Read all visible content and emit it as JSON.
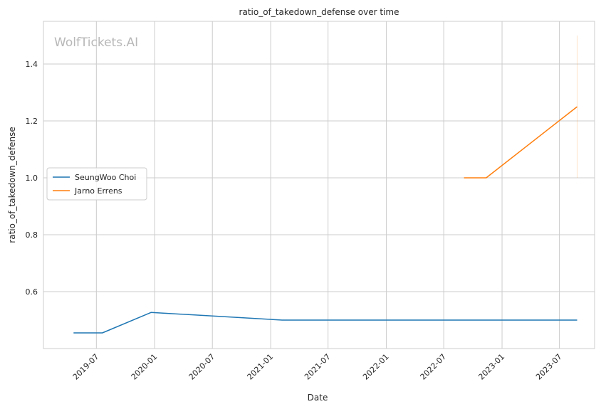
{
  "chart_data": {
    "type": "line",
    "title": "ratio_of_takedown_defense over time",
    "xlabel": "Date",
    "ylabel": "ratio_of_takedown_defense",
    "watermark": "WolfTickets.AI",
    "xlim": [
      "2019-01-15",
      "2023-10-20"
    ],
    "ylim": [
      0.4,
      1.55
    ],
    "grid": true,
    "legend_position": "center-left",
    "x_ticks": [
      {
        "date": "2019-07-01",
        "label": "2019-07"
      },
      {
        "date": "2020-01-01",
        "label": "2020-01"
      },
      {
        "date": "2020-07-01",
        "label": "2020-07"
      },
      {
        "date": "2021-01-01",
        "label": "2021-01"
      },
      {
        "date": "2021-07-01",
        "label": "2021-07"
      },
      {
        "date": "2022-01-01",
        "label": "2022-01"
      },
      {
        "date": "2022-07-01",
        "label": "2022-07"
      },
      {
        "date": "2023-01-01",
        "label": "2023-01"
      },
      {
        "date": "2023-07-01",
        "label": "2023-07"
      }
    ],
    "y_ticks": [
      0.6,
      0.8,
      1.0,
      1.2,
      1.4
    ],
    "series": [
      {
        "name": "SeungWoo Choi",
        "color": "#1f77b4",
        "x": [
          "2019-04-20",
          "2019-07-20",
          "2019-12-21",
          "2021-02-06",
          "2023-08-26"
        ],
        "y": [
          0.455,
          0.455,
          0.527,
          0.5,
          0.5
        ]
      },
      {
        "name": "Jarno Errens",
        "color": "#ff7f0e",
        "x": [
          "2022-09-03",
          "2022-11-12",
          "2023-08-26"
        ],
        "y": [
          1.0,
          1.0,
          1.25
        ]
      }
    ],
    "error_bar": {
      "series": "Jarno Errens",
      "x": "2023-08-26",
      "y_low": 1.0,
      "y_high": 1.5,
      "color": "#ff7f0e"
    }
  }
}
